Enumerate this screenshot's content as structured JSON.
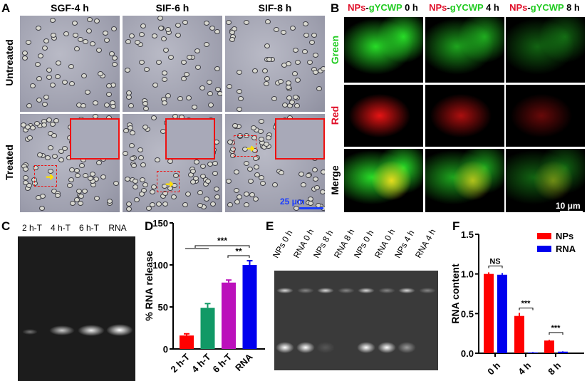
{
  "panelA": {
    "label": "A",
    "columns": [
      "SGF-4 h",
      "SIF-6 h",
      "SIF-8 h"
    ],
    "rows": [
      "Untreated",
      "Treated"
    ],
    "scale_bar": "25 μm"
  },
  "panelB": {
    "label": "B",
    "columns": [
      {
        "a": "NPs",
        "b": "-",
        "c": "gYCWP",
        "t": " 0 h"
      },
      {
        "a": "NPs",
        "b": "-",
        "c": "gYCWP",
        "t": " 4 h"
      },
      {
        "a": "NPs",
        "b": "-",
        "c": "gYCWP",
        "t": " 8 h"
      }
    ],
    "rows": [
      "Green",
      "Red",
      "Merge"
    ],
    "scale_bar": "10 μm",
    "colors": {
      "green": "#22cc22",
      "red": "#e0102a"
    }
  },
  "panelC": {
    "label": "C",
    "lanes": [
      "2 h-T",
      "4 h-T",
      "6 h-T",
      "RNA"
    ]
  },
  "panelE": {
    "label": "E",
    "lanes": [
      "NPs 0 h",
      "RNA 0 h",
      "NPs 8 h",
      "RNA 8 h",
      "NPs 0 h",
      "RNA 0 h",
      "NPs 4 h",
      "RNA 4 h"
    ]
  },
  "chart_data": [
    {
      "panel": "D",
      "type": "bar",
      "categories": [
        "2 h-T",
        "4 h-T",
        "6 h-T",
        "RNA"
      ],
      "values": [
        16,
        49,
        79,
        100
      ],
      "errors": [
        2,
        5,
        3,
        5
      ],
      "colors": [
        "#ff0000",
        "#119966",
        "#bb11bb",
        "#0000ee"
      ],
      "ylabel": "% RNA release",
      "ylim": [
        0,
        150
      ],
      "yticks": [
        "0",
        "50",
        "100",
        "150"
      ],
      "annotations": [
        "***",
        "**"
      ]
    },
    {
      "panel": "F",
      "type": "bar",
      "categories": [
        "0 h",
        "4 h",
        "8 h"
      ],
      "series": [
        {
          "name": "NPs",
          "values": [
            1.0,
            0.47,
            0.16
          ],
          "errors": [
            0.02,
            0.04,
            0.01
          ],
          "color": "#ff0000"
        },
        {
          "name": "RNA",
          "values": [
            0.99,
            0.01,
            0.02
          ],
          "errors": [
            0.02,
            0.005,
            0.005
          ],
          "color": "#0000ee"
        }
      ],
      "ylabel": "RNA content",
      "ylim": [
        0,
        1.5
      ],
      "yticks": [
        "0.0",
        "0.5",
        "1.0",
        "1.5"
      ],
      "annotations": [
        "NS",
        "***",
        "***"
      ],
      "legend": "top-right"
    }
  ]
}
